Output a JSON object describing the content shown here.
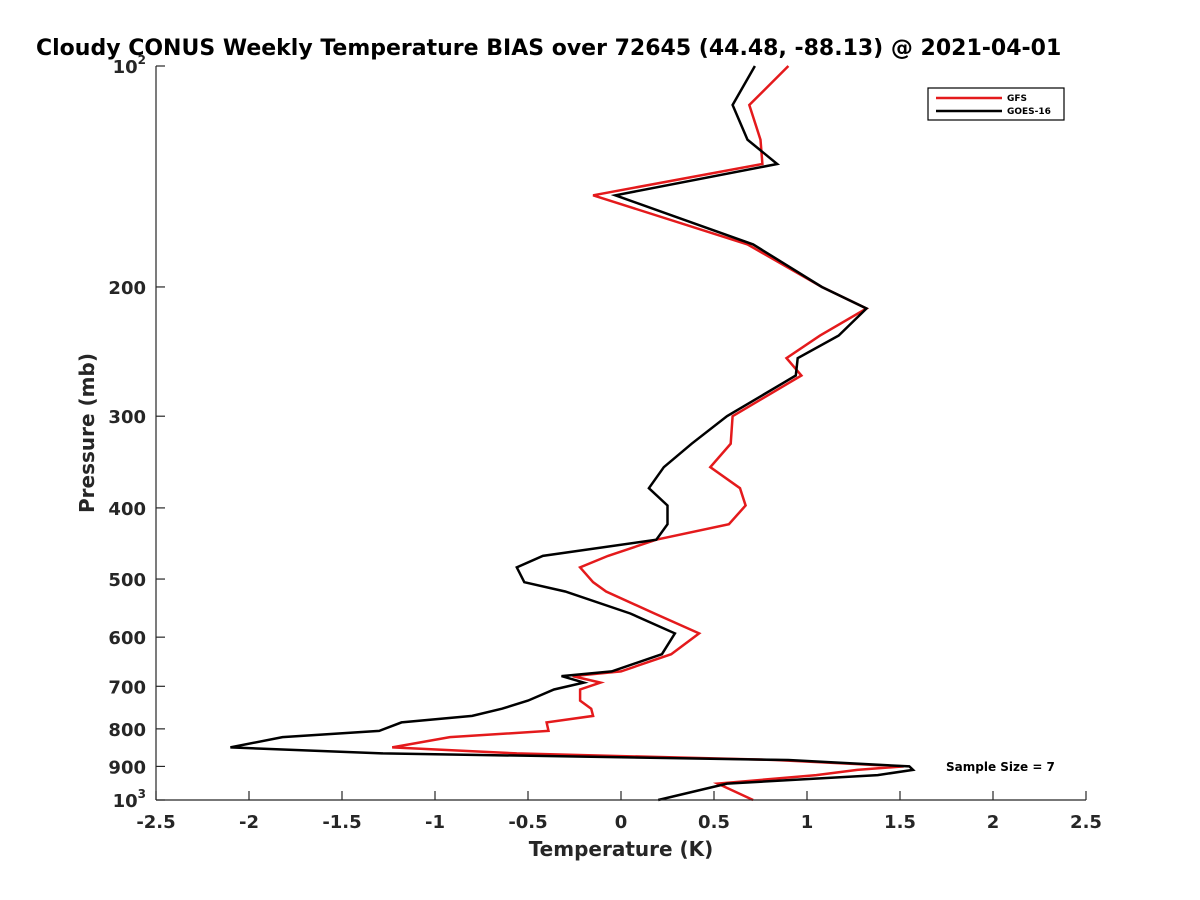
{
  "chart_data": {
    "type": "line",
    "title": "Cloudy CONUS Weekly Temperature BIAS over 72645 (44.48, -88.13) @ 2021-04-01",
    "xlabel": "Temperature (K)",
    "ylabel": "Pressure (mb)",
    "xlim": [
      -2.5,
      2.5
    ],
    "ylim": [
      100,
      1000
    ],
    "y_scale": "log",
    "y_reversed": true,
    "grid": false,
    "legend_position": "top-right",
    "x_ticks": [
      -2.5,
      -2,
      -1.5,
      -1,
      -0.5,
      0,
      0.5,
      1,
      1.5,
      2,
      2.5
    ],
    "x_tick_labels": [
      "-2.5",
      "-2",
      "-1.5",
      "-1",
      "-0.5",
      "0",
      "0.5",
      "1",
      "1.5",
      "2",
      "2.5"
    ],
    "y_ticks": [
      {
        "value": 100,
        "label": "10",
        "sup": "2"
      },
      {
        "value": 200,
        "label": "200",
        "sup": ""
      },
      {
        "value": 300,
        "label": "300",
        "sup": ""
      },
      {
        "value": 400,
        "label": "400",
        "sup": ""
      },
      {
        "value": 500,
        "label": "500",
        "sup": ""
      },
      {
        "value": 600,
        "label": "600",
        "sup": ""
      },
      {
        "value": 700,
        "label": "700",
        "sup": ""
      },
      {
        "value": 800,
        "label": "800",
        "sup": ""
      },
      {
        "value": 900,
        "label": "900",
        "sup": ""
      },
      {
        "value": 1000,
        "label": "10",
        "sup": "3"
      }
    ],
    "annotation": "Sample Size = 7",
    "series": [
      {
        "name": "GFS",
        "color": "#e41a1c",
        "points": [
          [
            0.9,
            100
          ],
          [
            0.69,
            113
          ],
          [
            0.75,
            126
          ],
          [
            0.76,
            136
          ],
          [
            -0.15,
            150
          ],
          [
            0.68,
            175
          ],
          [
            1.08,
            200
          ],
          [
            1.32,
            214
          ],
          [
            1.07,
            233
          ],
          [
            0.89,
            250
          ],
          [
            0.97,
            264
          ],
          [
            0.6,
            300
          ],
          [
            0.59,
            327
          ],
          [
            0.48,
            352
          ],
          [
            0.64,
            376
          ],
          [
            0.67,
            397
          ],
          [
            0.58,
            421
          ],
          [
            0.19,
            442
          ],
          [
            -0.07,
            465
          ],
          [
            -0.22,
            482
          ],
          [
            -0.15,
            505
          ],
          [
            -0.08,
            520
          ],
          [
            0.18,
            557
          ],
          [
            0.42,
            593
          ],
          [
            0.27,
            633
          ],
          [
            0.0,
            668
          ],
          [
            -0.26,
            678
          ],
          [
            -0.11,
            692
          ],
          [
            -0.22,
            707
          ],
          [
            -0.22,
            732
          ],
          [
            -0.16,
            751
          ],
          [
            -0.15,
            768
          ],
          [
            -0.4,
            784
          ],
          [
            -0.39,
            805
          ],
          [
            -0.92,
            821
          ],
          [
            -1.23,
            848
          ],
          [
            -0.56,
            864
          ],
          [
            0.83,
            882
          ],
          [
            1.52,
            900
          ],
          [
            1.27,
            910
          ],
          [
            1.05,
            925
          ],
          [
            0.52,
            950
          ],
          [
            0.71,
            1000
          ]
        ]
      },
      {
        "name": "GOES-16",
        "color": "#000000",
        "points": [
          [
            0.72,
            100
          ],
          [
            0.6,
            113
          ],
          [
            0.68,
            126
          ],
          [
            0.84,
            136
          ],
          [
            -0.03,
            150
          ],
          [
            0.71,
            175
          ],
          [
            1.08,
            200
          ],
          [
            1.32,
            214
          ],
          [
            1.17,
            233
          ],
          [
            0.95,
            250
          ],
          [
            0.94,
            264
          ],
          [
            0.57,
            300
          ],
          [
            0.38,
            327
          ],
          [
            0.23,
            352
          ],
          [
            0.15,
            376
          ],
          [
            0.25,
            397
          ],
          [
            0.25,
            421
          ],
          [
            0.19,
            442
          ],
          [
            -0.42,
            465
          ],
          [
            -0.56,
            482
          ],
          [
            -0.52,
            505
          ],
          [
            -0.3,
            520
          ],
          [
            0.05,
            557
          ],
          [
            0.29,
            593
          ],
          [
            0.22,
            633
          ],
          [
            -0.05,
            668
          ],
          [
            -0.32,
            678
          ],
          [
            -0.2,
            692
          ],
          [
            -0.36,
            707
          ],
          [
            -0.5,
            732
          ],
          [
            -0.64,
            751
          ],
          [
            -0.8,
            768
          ],
          [
            -1.18,
            784
          ],
          [
            -1.3,
            805
          ],
          [
            -1.82,
            821
          ],
          [
            -2.1,
            848
          ],
          [
            -1.28,
            864
          ],
          [
            0.9,
            882
          ],
          [
            1.55,
            900
          ],
          [
            1.57,
            910
          ],
          [
            1.38,
            925
          ],
          [
            0.57,
            950
          ],
          [
            0.2,
            1000
          ]
        ]
      }
    ]
  }
}
